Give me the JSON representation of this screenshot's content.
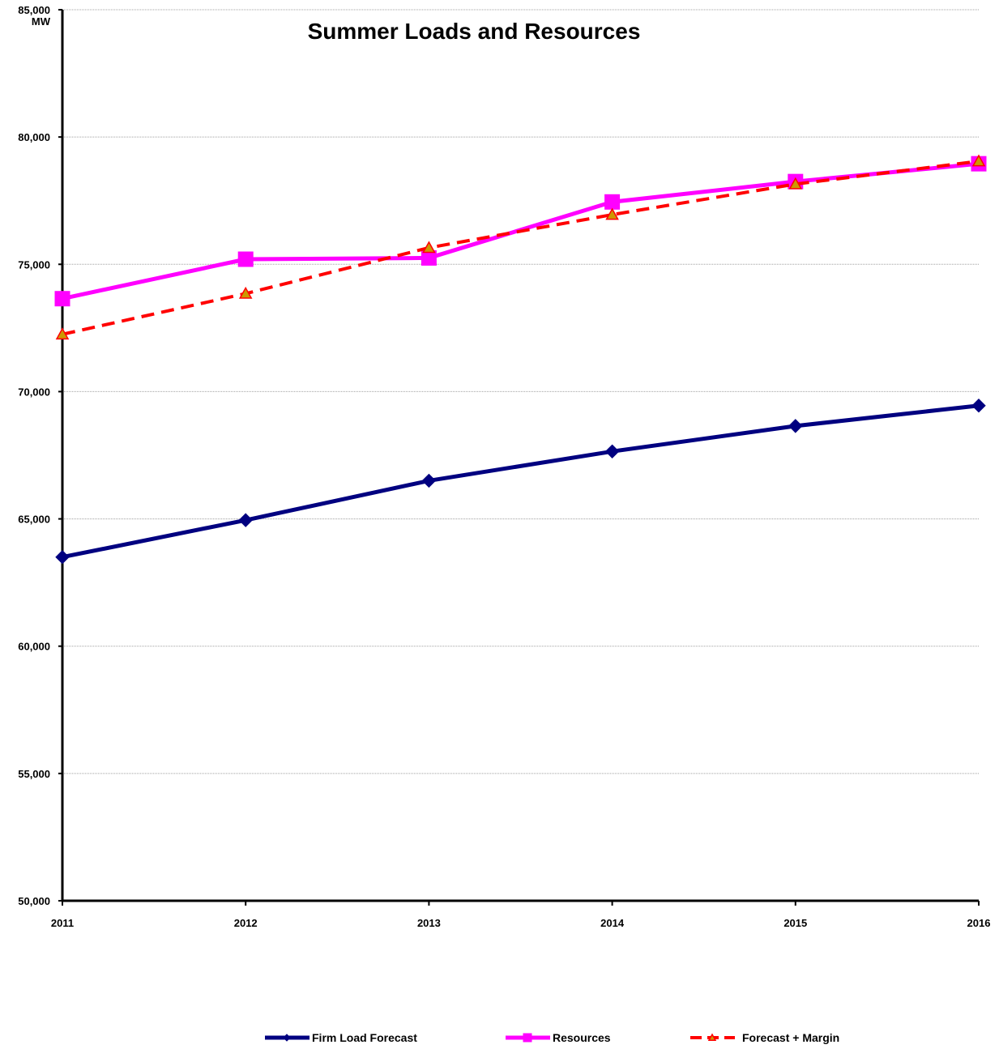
{
  "chart_data": {
    "type": "line",
    "title": "Summer Loads and Resources",
    "ylabel": "MW",
    "xlabel": "",
    "categories": [
      "2011",
      "2012",
      "2013",
      "2014",
      "2015",
      "2016"
    ],
    "ylim": [
      50000,
      85000
    ],
    "yticks": [
      50000,
      55000,
      60000,
      65000,
      70000,
      75000,
      80000,
      85000
    ],
    "ytick_labels": [
      "50,000",
      "55,000",
      "60,000",
      "65,000",
      "70,000",
      "75,000",
      "80,000",
      "85,000"
    ],
    "grid": true,
    "legend_position": "bottom",
    "series": [
      {
        "name": "Firm Load Forecast",
        "values": [
          63500,
          64950,
          66500,
          67650,
          68650,
          69450
        ],
        "color": "#000080",
        "marker": "diamond",
        "dash": "solid"
      },
      {
        "name": "Resources",
        "values": [
          73650,
          75200,
          75250,
          77450,
          78250,
          78950
        ],
        "color": "#ff00ff",
        "marker": "square",
        "dash": "solid"
      },
      {
        "name": "Forecast + Margin",
        "values": [
          72250,
          73850,
          75650,
          76950,
          78150,
          79050
        ],
        "color": "#ff0000",
        "marker": "triangle",
        "marker_color": "#cc9900",
        "dash": "dashed"
      }
    ]
  }
}
